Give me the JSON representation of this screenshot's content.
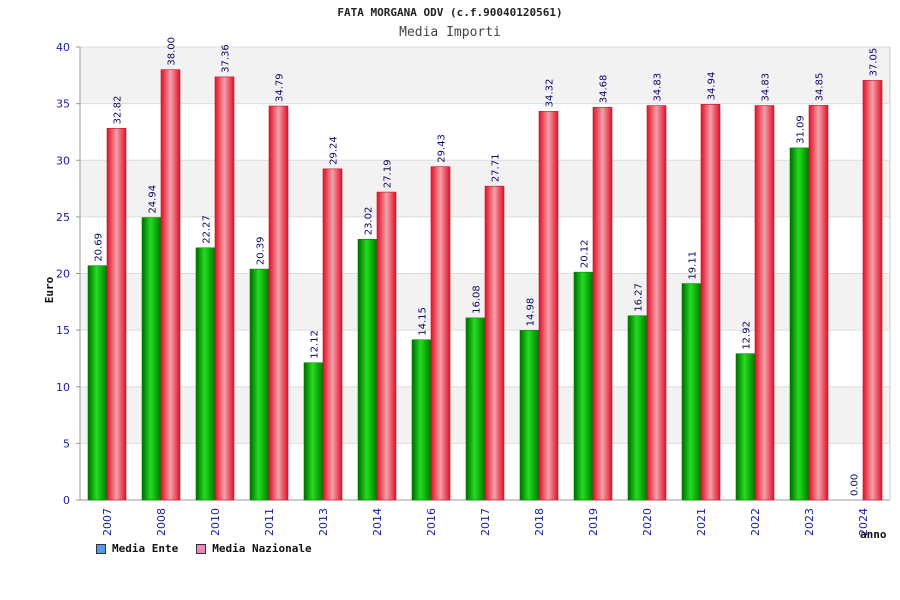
{
  "header": {
    "title": "FATA MORGANA ODV (c.f.90040120561)",
    "subtitle": "Media Importi"
  },
  "colors": {
    "ente": "#00b000",
    "nazionale": "#e8303c",
    "legend_ente": "#5599ee",
    "legend_nazionale": "#ee88bb"
  },
  "chart_data": {
    "type": "bar",
    "title": "Media Importi",
    "xlabel": "anno",
    "ylabel": "Euro",
    "ylim": [
      0,
      40
    ],
    "yticks": [
      0,
      5,
      10,
      15,
      20,
      25,
      30,
      35,
      40
    ],
    "categories": [
      "2007",
      "2008",
      "2010",
      "2011",
      "2013",
      "2014",
      "2016",
      "2017",
      "2018",
      "2019",
      "2020",
      "2021",
      "2022",
      "2023",
      "2024"
    ],
    "series": [
      {
        "name": "Media Ente",
        "values": [
          20.69,
          24.94,
          22.27,
          20.39,
          12.12,
          23.02,
          14.15,
          16.08,
          14.98,
          20.12,
          16.27,
          19.11,
          12.92,
          31.09,
          0.0
        ],
        "labels": [
          "20.69",
          "24.94",
          "22.27",
          "20.39",
          "12.12",
          "23.02",
          "14.15",
          "16.08",
          "14.98",
          "20.12",
          "16.27",
          "19.11",
          "12.92",
          "31.09",
          "0.00"
        ]
      },
      {
        "name": "Media Nazionale",
        "values": [
          32.82,
          38.0,
          37.36,
          34.79,
          29.24,
          27.19,
          29.43,
          27.71,
          34.32,
          34.68,
          34.83,
          34.94,
          34.83,
          34.85,
          37.05
        ],
        "labels": [
          "32.82",
          "38.00",
          "37.36",
          "34.79",
          "29.24",
          "27.19",
          "29.43",
          "27.71",
          "34.32",
          "34.68",
          "34.83",
          "34.94",
          "34.83",
          "34.85",
          "37.05"
        ]
      }
    ],
    "legend": [
      "Media Ente",
      "Media Nazionale"
    ],
    "grid": true
  }
}
